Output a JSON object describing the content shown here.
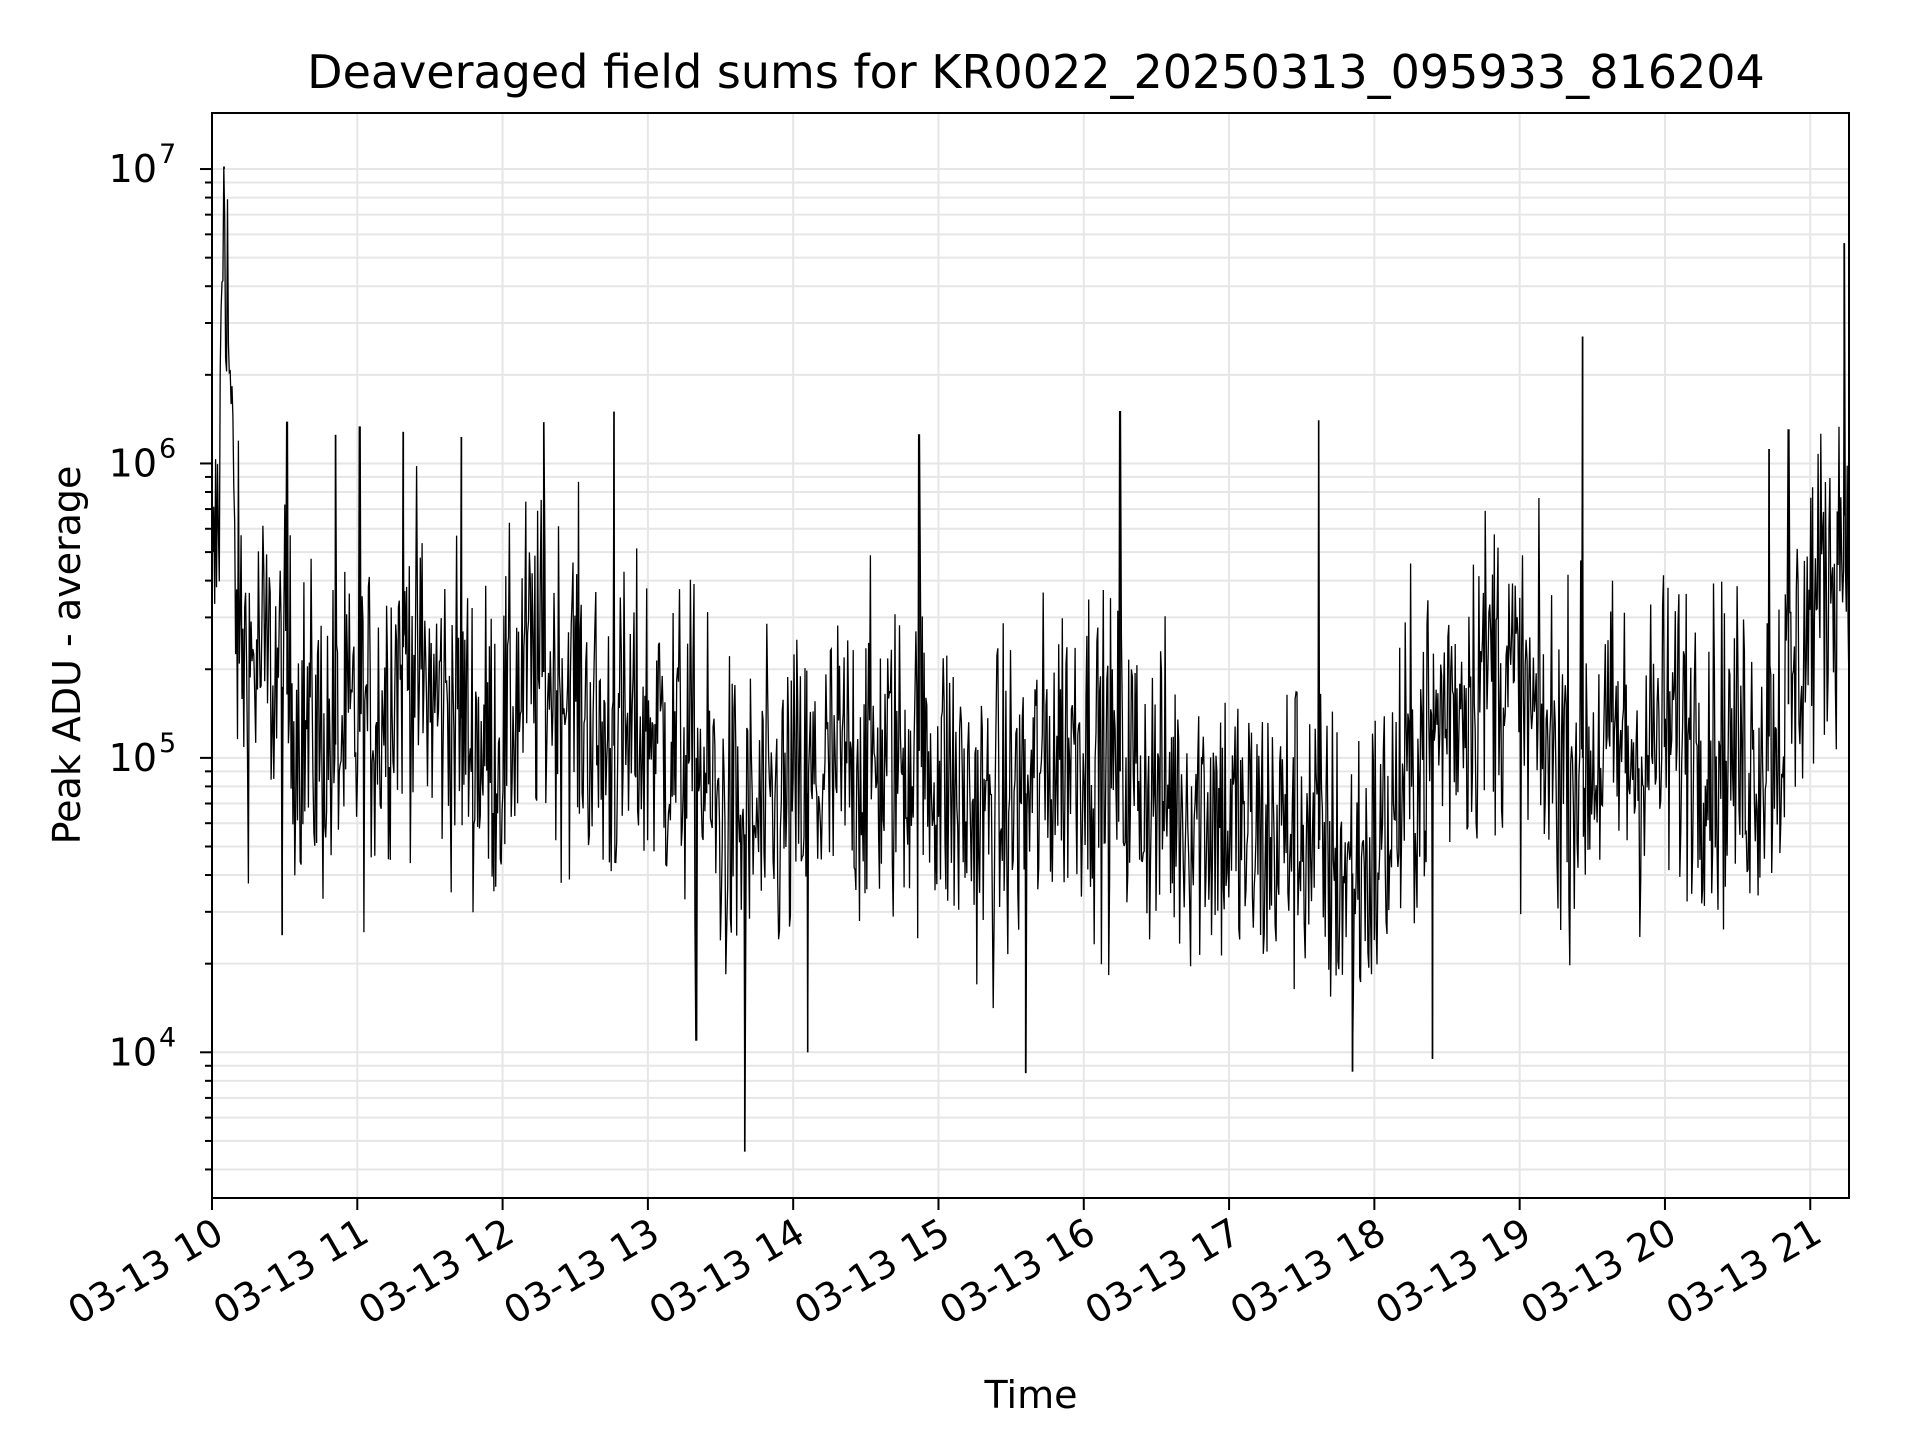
{
  "chart_data": {
    "type": "line",
    "title": "Deaveraged field sums for KR0022_20250313_095933_816204",
    "xlabel": "Time",
    "ylabel": "Peak ADU - average",
    "y_scale": "log",
    "x_range": [
      "2025-03-13 10:00",
      "2025-03-13 21:16"
    ],
    "ylim": [
      3200,
      15500000
    ],
    "grid": true,
    "line_color": "#000000",
    "grid_color": "#e6e6e6",
    "x_ticks": [
      {
        "value": "2025-03-13 10:00",
        "label": "03-13 10"
      },
      {
        "value": "2025-03-13 11:00",
        "label": "03-13 11"
      },
      {
        "value": "2025-03-13 12:00",
        "label": "03-13 12"
      },
      {
        "value": "2025-03-13 13:00",
        "label": "03-13 13"
      },
      {
        "value": "2025-03-13 14:00",
        "label": "03-13 14"
      },
      {
        "value": "2025-03-13 15:00",
        "label": "03-13 15"
      },
      {
        "value": "2025-03-13 16:00",
        "label": "03-13 16"
      },
      {
        "value": "2025-03-13 17:00",
        "label": "03-13 17"
      },
      {
        "value": "2025-03-13 18:00",
        "label": "03-13 18"
      },
      {
        "value": "2025-03-13 19:00",
        "label": "03-13 19"
      },
      {
        "value": "2025-03-13 20:00",
        "label": "03-13 20"
      },
      {
        "value": "2025-03-13 21:00",
        "label": "03-13 21"
      }
    ],
    "y_ticks": [
      {
        "value": 10000,
        "base": "10",
        "exp": "4"
      },
      {
        "value": 100000,
        "base": "10",
        "exp": "5"
      },
      {
        "value": 1000000,
        "base": "10",
        "exp": "6"
      },
      {
        "value": 10000000,
        "base": "10",
        "exp": "7"
      }
    ],
    "series": [
      {
        "x": [
          "2025-03-13 10:00",
          "2025-03-13 10:03",
          "2025-03-13 10:05",
          "2025-03-13 10:10",
          "2025-03-13 10:15",
          "2025-03-13 10:20",
          "2025-03-13 10:30",
          "2025-03-13 10:40",
          "2025-03-13 10:50",
          "2025-03-13 11:00",
          "2025-03-13 11:10",
          "2025-03-13 11:20",
          "2025-03-13 11:30",
          "2025-03-13 11:40",
          "2025-03-13 11:50",
          "2025-03-13 12:00",
          "2025-03-13 12:10",
          "2025-03-13 12:20",
          "2025-03-13 12:30",
          "2025-03-13 12:40",
          "2025-03-13 12:50",
          "2025-03-13 13:00",
          "2025-03-13 13:10",
          "2025-03-13 13:20",
          "2025-03-13 13:30",
          "2025-03-13 13:40",
          "2025-03-13 13:50",
          "2025-03-13 14:00",
          "2025-03-13 14:10",
          "2025-03-13 14:20",
          "2025-03-13 14:30",
          "2025-03-13 14:40",
          "2025-03-13 14:50",
          "2025-03-13 15:00",
          "2025-03-13 15:10",
          "2025-03-13 15:20",
          "2025-03-13 15:30",
          "2025-03-13 15:40",
          "2025-03-13 15:50",
          "2025-03-13 16:00",
          "2025-03-13 16:10",
          "2025-03-13 16:20",
          "2025-03-13 16:30",
          "2025-03-13 16:40",
          "2025-03-13 16:50",
          "2025-03-13 17:00",
          "2025-03-13 17:10",
          "2025-03-13 17:20",
          "2025-03-13 17:30",
          "2025-03-13 17:40",
          "2025-03-13 17:50",
          "2025-03-13 18:00",
          "2025-03-13 18:10",
          "2025-03-13 18:20",
          "2025-03-13 18:30",
          "2025-03-13 18:40",
          "2025-03-13 18:50",
          "2025-03-13 19:00",
          "2025-03-13 19:10",
          "2025-03-13 19:20",
          "2025-03-13 19:30",
          "2025-03-13 19:40",
          "2025-03-13 19:50",
          "2025-03-13 20:00",
          "2025-03-13 20:10",
          "2025-03-13 20:20",
          "2025-03-13 20:30",
          "2025-03-13 20:40",
          "2025-03-13 20:50",
          "2025-03-13 21:00",
          "2025-03-13 21:10",
          "2025-03-13 21:16"
        ],
        "y": [
          280000,
          800000,
          10000000,
          300000,
          200000,
          220000,
          170000,
          120000,
          110000,
          120000,
          150000,
          250000,
          160000,
          150000,
          110000,
          110000,
          210000,
          190000,
          180000,
          110000,
          110000,
          130000,
          110000,
          100000,
          60000,
          55000,
          60000,
          70000,
          80000,
          90000,
          100000,
          95000,
          110000,
          90000,
          70000,
          60000,
          70000,
          80000,
          110000,
          120000,
          90000,
          90000,
          75000,
          70000,
          70000,
          60000,
          50000,
          55000,
          60000,
          45000,
          40000,
          45000,
          70000,
          110000,
          150000,
          180000,
          220000,
          160000,
          110000,
          100000,
          100000,
          110000,
          100000,
          120000,
          130000,
          110000,
          100000,
          110000,
          140000,
          320000,
          460000,
          800000
        ]
      }
    ],
    "spikes": [
      {
        "x": "2025-03-13 10:05",
        "y": 10200000
      },
      {
        "x": "2025-03-13 10:31",
        "y": 1380000
      },
      {
        "x": "2025-03-13 10:51",
        "y": 1250000
      },
      {
        "x": "2025-03-13 11:01",
        "y": 1330000
      },
      {
        "x": "2025-03-13 11:19",
        "y": 1280000
      },
      {
        "x": "2025-03-13 11:43",
        "y": 1230000
      },
      {
        "x": "2025-03-13 12:17",
        "y": 1380000
      },
      {
        "x": "2025-03-13 12:46",
        "y": 1500000
      },
      {
        "x": "2025-03-13 14:52",
        "y": 1250000
      },
      {
        "x": "2025-03-13 16:15",
        "y": 1500000
      },
      {
        "x": "2025-03-13 17:37",
        "y": 1400000
      },
      {
        "x": "2025-03-13 19:26",
        "y": 2700000
      },
      {
        "x": "2025-03-13 20:43",
        "y": 1120000
      },
      {
        "x": "2025-03-13 20:51",
        "y": 1300000
      },
      {
        "x": "2025-03-13 21:14",
        "y": 5600000
      },
      {
        "x": "2025-03-13 13:40",
        "y": 4600
      },
      {
        "x": "2025-03-13 15:36",
        "y": 8500
      },
      {
        "x": "2025-03-13 17:51",
        "y": 8600
      },
      {
        "x": "2025-03-13 13:20",
        "y": 11000
      },
      {
        "x": "2025-03-13 14:06",
        "y": 10000
      },
      {
        "x": "2025-03-13 18:24",
        "y": 9500
      },
      {
        "x": "2025-03-13 10:29",
        "y": 25000
      }
    ],
    "noise_amplitude_decades": 0.55
  }
}
